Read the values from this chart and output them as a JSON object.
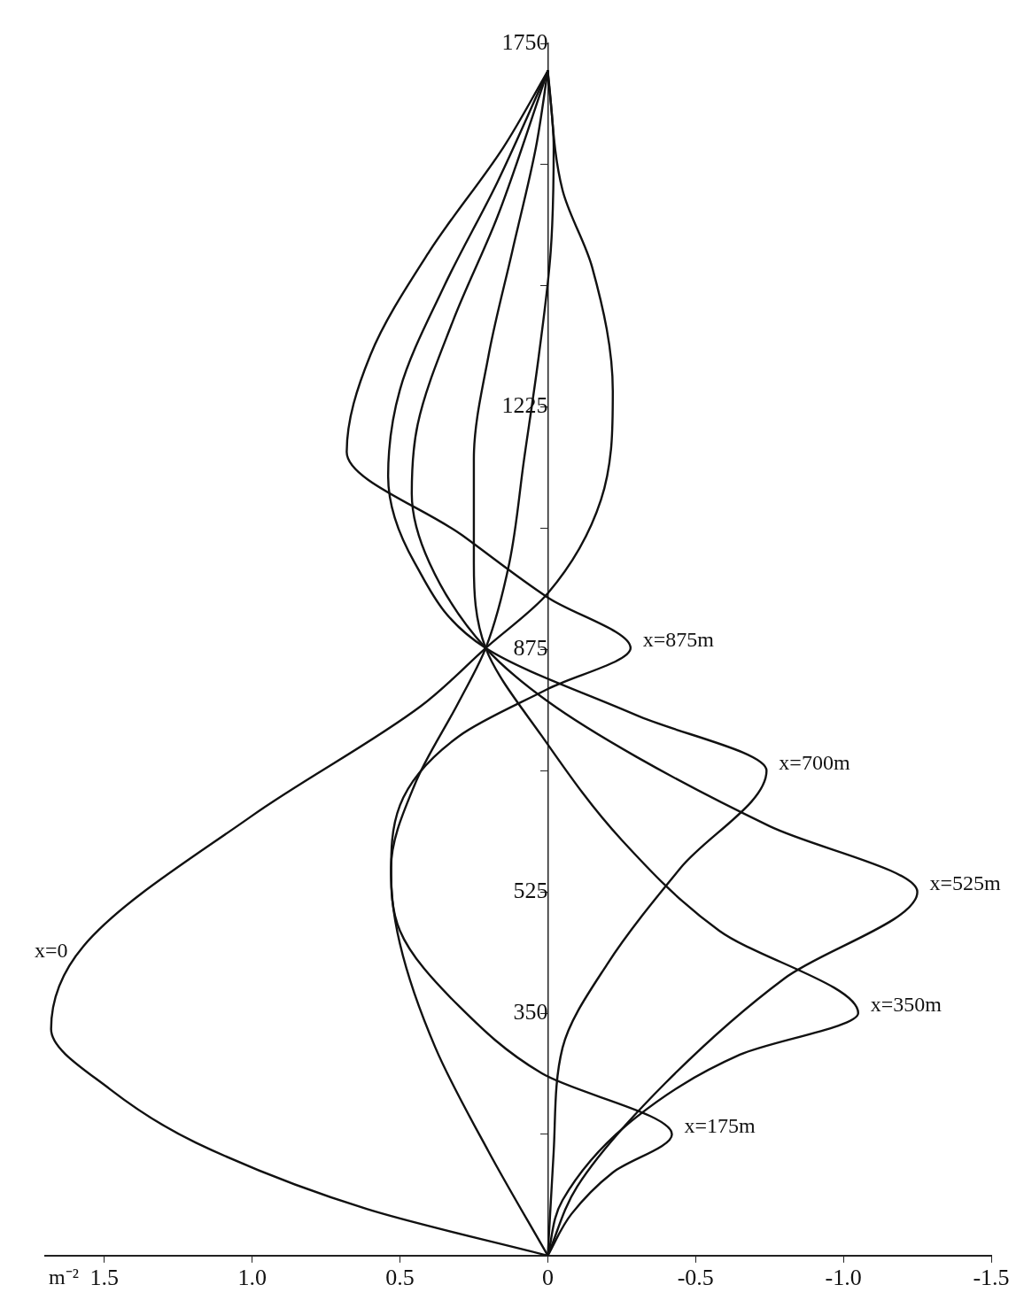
{
  "chart_data": {
    "type": "line",
    "xlabel": "m⁻²",
    "xlim": [
      1.7,
      -1.5
    ],
    "ylim": [
      0,
      1750
    ],
    "yticks": [
      {
        "value": 175,
        "label": null
      },
      350,
      525,
      {
        "value": 700,
        "label": null
      },
      875,
      {
        "value": 1050,
        "label": null
      },
      1225,
      {
        "value": 1400,
        "label": null
      },
      {
        "value": 1575,
        "label": null
      },
      1750
    ],
    "xticks": [
      1.5,
      {
        "value": 1.0,
        "label": "1.0"
      },
      0.5,
      0,
      -0.5,
      {
        "value": -1.0,
        "label": "-1.0"
      },
      -1.5
    ],
    "marker": "none",
    "line_style": "solid",
    "series": [
      {
        "name": "x=0",
        "color": "#111111",
        "x": [
          0,
          0.61,
          1.19,
          1.48,
          1.68,
          1.57,
          1.0,
          0.43,
          0.21,
          0,
          -0.18,
          -0.22,
          -0.15,
          -0.05,
          0
        ],
        "values": [
          0,
          67,
          163,
          240,
          327,
          447,
          635,
          793,
          877,
          956,
          1091,
          1248,
          1427,
          1538,
          1710
        ]
      },
      {
        "name": "x=175m",
        "color": "#111111",
        "x": [
          0,
          -0.08,
          -0.22,
          -0.42,
          0.02,
          0.3,
          0.5,
          0.53,
          0.45,
          0.3,
          0.21,
          0.13,
          0.08,
          0.03,
          -0.01,
          -0.02,
          0
        ],
        "values": [
          0,
          60,
          120,
          175,
          263,
          360,
          469,
          560,
          680,
          800,
          877,
          1000,
          1150,
          1300,
          1450,
          1600,
          1710
        ]
      },
      {
        "name": "x=350m",
        "color": "#111111",
        "x": [
          0,
          -0.05,
          -0.3,
          -0.65,
          -1.05,
          -0.58,
          -0.25,
          0.02,
          0.21,
          0.25,
          0.25,
          0.2,
          0.12,
          0.04,
          0
        ],
        "values": [
          0,
          80,
          200,
          290,
          350,
          469,
          600,
          750,
          877,
          1000,
          1150,
          1300,
          1450,
          1600,
          1710
        ]
      },
      {
        "name": "x=525m",
        "color": "#111111",
        "x": [
          0,
          -0.1,
          -0.4,
          -0.8,
          -1.25,
          -0.75,
          -0.3,
          0,
          0.21,
          0.4,
          0.46,
          0.44,
          0.32,
          0.17,
          0
        ],
        "values": [
          0,
          100,
          250,
          400,
          525,
          620,
          720,
          800,
          877,
          1000,
          1100,
          1200,
          1350,
          1500,
          1710
        ]
      },
      {
        "name": "x=700m",
        "color": "#111111",
        "x": [
          0,
          -0.02,
          -0.05,
          -0.2,
          -0.45,
          -0.74,
          -0.3,
          0.21,
          0.45,
          0.54,
          0.5,
          0.35,
          0.17,
          0
        ],
        "values": [
          0,
          150,
          300,
          420,
          560,
          700,
          780,
          877,
          1000,
          1125,
          1250,
          1400,
          1550,
          1710
        ]
      },
      {
        "name": "x=875m",
        "color": "#111111",
        "x": [
          0,
          0.2,
          0.38,
          0.5,
          0.53,
          0.5,
          0.3,
          0,
          -0.28,
          0,
          0.29,
          0.68,
          0.6,
          0.4,
          0.15,
          0
        ],
        "values": [
          0,
          150,
          300,
          450,
          550,
          650,
          750,
          818,
          877,
          950,
          1040,
          1160,
          1300,
          1450,
          1600,
          1710
        ]
      }
    ]
  }
}
